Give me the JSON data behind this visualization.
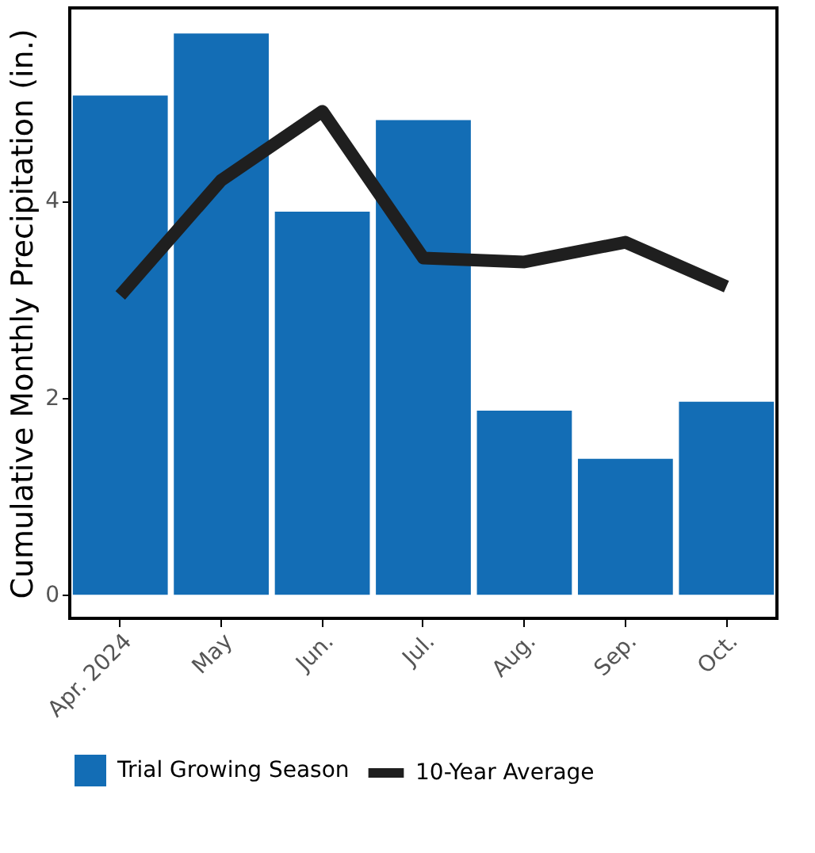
{
  "chart_data": {
    "type": "bar",
    "ylabel": "Cumulative Monthly Precipitation (in.)",
    "categories": [
      "Apr. 2024",
      "May",
      "Jun.",
      "Jul.",
      "Aug.",
      "Sep.",
      "Oct."
    ],
    "series": [
      {
        "name": "Trial Growing Season",
        "color": "#136db5",
        "values": [
          5.07,
          5.7,
          3.89,
          4.82,
          1.87,
          1.38,
          1.96
        ]
      },
      {
        "name": "10-Year Average",
        "type": "line",
        "color": "#1f1f1f",
        "values": [
          3.04,
          4.21,
          4.91,
          3.42,
          3.38,
          3.58,
          3.13
        ]
      }
    ],
    "ylim": [
      -0.24,
      5.96
    ],
    "yticks": [
      0,
      2,
      4
    ],
    "grid": false,
    "legend": "bottom"
  }
}
